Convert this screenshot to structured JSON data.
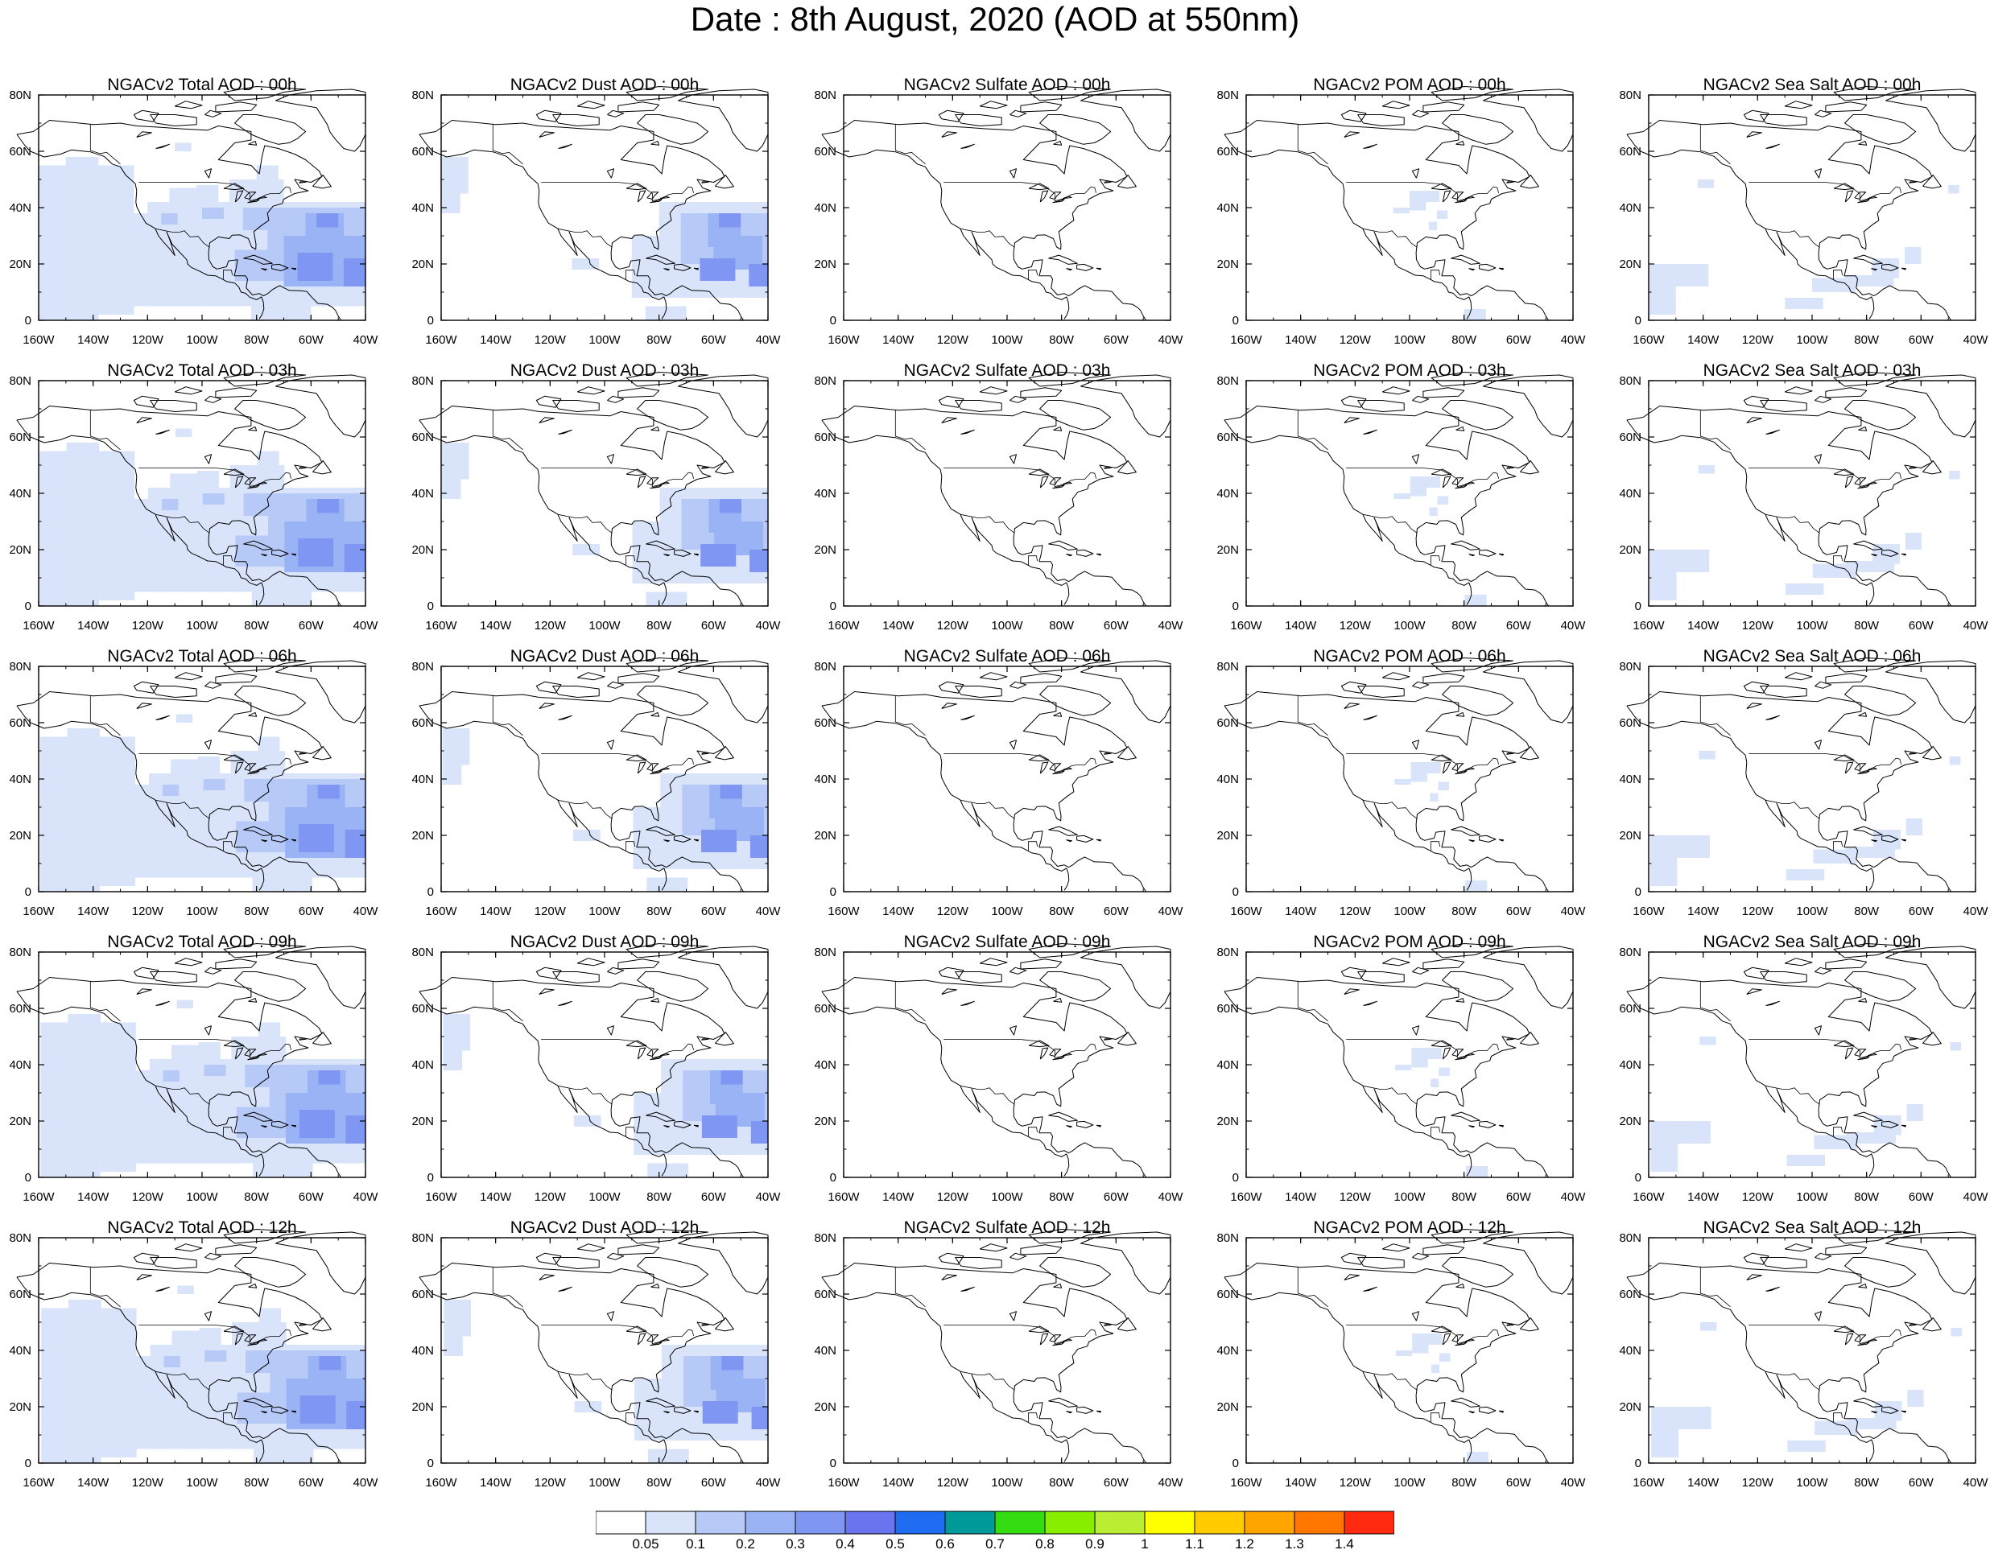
{
  "title": "Date : 8th August, 2020 (AOD at 550nm)",
  "map_axes": {
    "lat_ticks": [
      "0",
      "20N",
      "40N",
      "60N",
      "80N"
    ],
    "lon_ticks": [
      "160W",
      "140W",
      "120W",
      "100W",
      "80W",
      "60W",
      "40W"
    ],
    "lon_range": [
      -160,
      -40
    ],
    "lat_range": [
      0,
      80
    ]
  },
  "columns": [
    "Total",
    "Dust",
    "Sulfate",
    "POM",
    "Sea Salt"
  ],
  "panels": [
    [
      "NGACv2 Total AOD : 00h",
      "NGACv2 Dust AOD : 00h",
      "NGACv2 Sulfate AOD : 00h",
      "NGACv2 POM AOD : 00h",
      "NGACv2 Sea Salt AOD : 00h"
    ],
    [
      "NGACv2 Total AOD : 03h",
      "NGACv2 Dust AOD : 03h",
      "NGACv2 Sulfate AOD : 03h",
      "NGACv2 POM AOD : 03h",
      "NGACv2 Sea Salt AOD : 03h"
    ],
    [
      "NGACv2 Total AOD : 06h",
      "NGACv2 Dust AOD : 06h",
      "NGACv2 Sulfate AOD : 06h",
      "NGACv2 POM AOD : 06h",
      "NGACv2 Sea Salt AOD : 06h"
    ],
    [
      "NGACv2 Total AOD : 09h",
      "NGACv2 Dust AOD : 09h",
      "NGACv2 Sulfate AOD : 09h",
      "NGACv2 POM AOD : 09h",
      "NGACv2 Sea Salt  AOD : 09h"
    ],
    [
      "NGACv2 Total AOD  : 12h",
      "NGACv2 Dust AOD : 12h",
      "NGACv2 Sulfate AOD : 12h",
      "NGACv2 POM  AOD : 12h",
      "NGACv2 Sea Salt  AOD : 12h"
    ]
  ],
  "colorbar": {
    "labels": [
      "0.05",
      "0.1",
      "0.2",
      "0.3",
      "0.4",
      "0.5",
      "0.6",
      "0.7",
      "0.8",
      "0.9",
      "1",
      "1.1",
      "1.2",
      "1.3",
      "1.4"
    ],
    "colors": [
      "#ffffff",
      "#d9e4fb",
      "#b7c9f7",
      "#9ab3f5",
      "#7f97f2",
      "#6a74ee",
      "#1e6cf2",
      "#009a9a",
      "#33dd11",
      "#88ee00",
      "#bbee33",
      "#ffff00",
      "#ffcc00",
      "#ffa500",
      "#ff7700",
      "#ff2a10"
    ]
  },
  "colors": {
    "aod_level_1": "#d9e4fb",
    "aod_level_2": "#b7c9f7",
    "aod_level_3": "#9ab3f5",
    "aod_level_4": "#7f97f2",
    "coastline": "#000000"
  }
}
